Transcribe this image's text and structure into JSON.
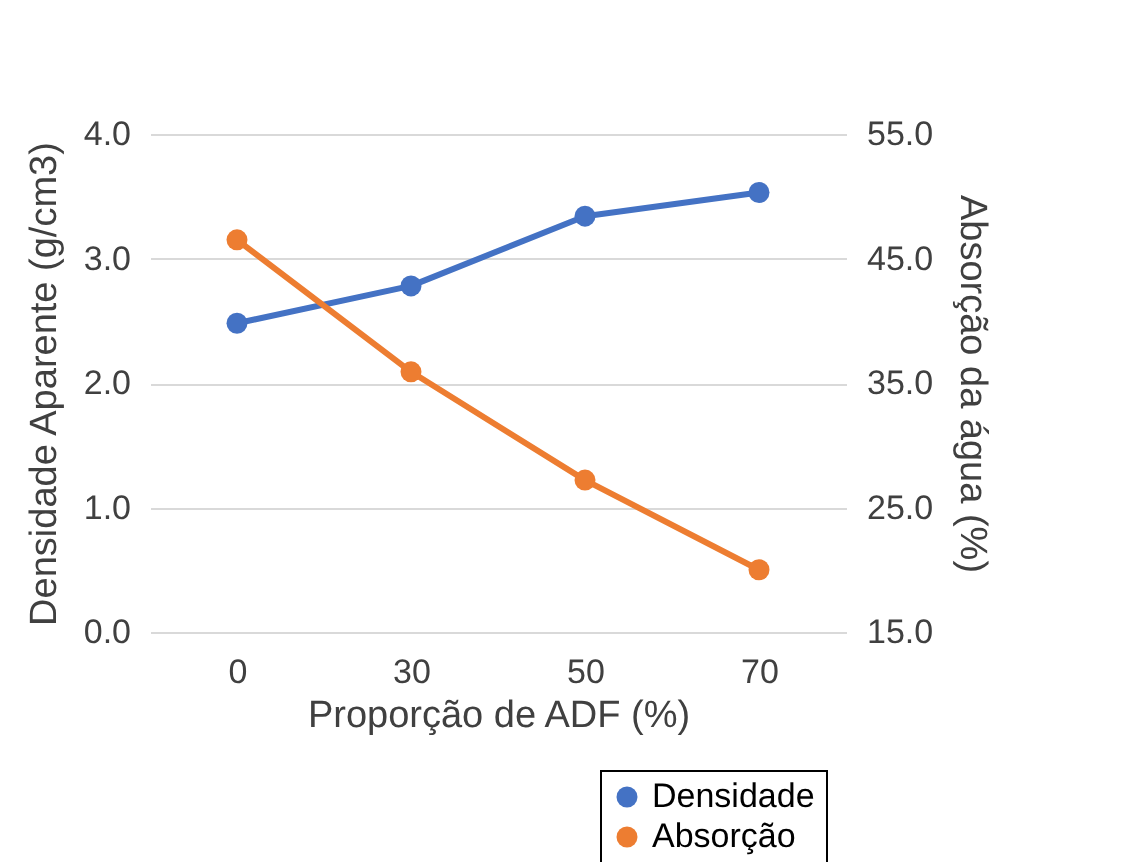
{
  "chart_data": {
    "type": "line",
    "xlabel": "Proporção de ADF (%)",
    "ylabel": "Densidade Aparente (g/cm3)",
    "y2label": "Absorção da água (%)",
    "categories": [
      "0",
      "30",
      "50",
      "70"
    ],
    "series": [
      {
        "name": "Densidade",
        "color": "#4472c4",
        "values": [
          2.48,
          2.78,
          3.34,
          3.53
        ]
      },
      {
        "name": "Absorção",
        "color": "#ed7d31",
        "values": [
          46.5,
          35.9,
          27.2,
          20.0
        ],
        "axis": "y2"
      }
    ],
    "ylim": [
      0,
      4
    ],
    "yticks": [
      {
        "value": 0,
        "label": "0.0"
      },
      {
        "value": 1,
        "label": "1.0"
      },
      {
        "value": 2,
        "label": "2.0"
      },
      {
        "value": 3,
        "label": "3.0"
      },
      {
        "value": 4,
        "label": "4.0"
      }
    ],
    "y2lim": [
      15,
      55
    ],
    "y2ticks": [
      {
        "value": 15,
        "label": "15.0"
      },
      {
        "value": 25,
        "label": "25.0"
      },
      {
        "value": 35,
        "label": "35.0"
      },
      {
        "value": 45,
        "label": "45.0"
      },
      {
        "value": 55,
        "label": "55.0"
      }
    ],
    "grid": "y",
    "legend": "bottom right",
    "marker": "circle",
    "line_style": "solid"
  }
}
